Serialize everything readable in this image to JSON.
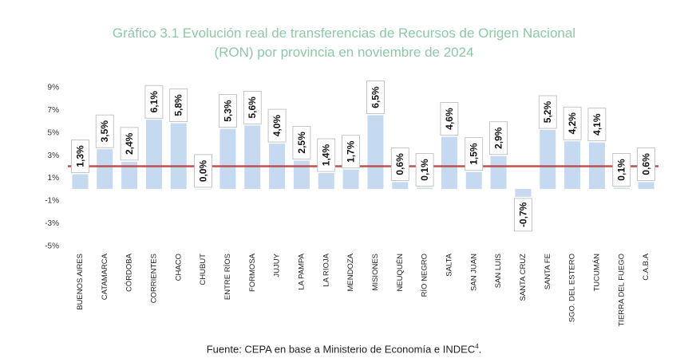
{
  "title_line1": "Gráfico 3.1 Evolución real de transferencias de Recursos de Origen Nacional",
  "title_line2": "(RON) por provincia en noviembre de 2024",
  "source": "Fuente: CEPA en base a Ministerio de Economía e INDEC",
  "source_sup": "4",
  "colors": {
    "bar": "#c5d9f1",
    "reference_line": "#c0504d",
    "title": "#8cc9a6"
  },
  "chart_data": {
    "type": "bar",
    "title": "Gráfico 3.1 Evolución real de transferencias de Recursos de Origen Nacional (RON) por provincia en noviembre de 2024",
    "categories": [
      "BUENOS AIRES",
      "CATAMARCA",
      "CÓRDOBA",
      "CORRIENTES",
      "CHACO",
      "CHUBUT",
      "ENTRE RÍOS",
      "FORMOSA",
      "JUJUY",
      "LA PAMPA",
      "LA RIOJA",
      "MENDOZA",
      "MISIONES",
      "NEUQUÉN",
      "RÍO NEGRO",
      "SALTA",
      "SAN JUAN",
      "SAN LUIS",
      "SANTA CRUZ",
      "SANTA FE",
      "SGO. DEL ESTERO",
      "TUCUMÁN",
      "TIERRA DEL FUEGO",
      "C.A.B.A"
    ],
    "values": [
      1.3,
      3.5,
      2.4,
      6.1,
      5.8,
      0.0,
      5.3,
      5.6,
      4.0,
      2.5,
      1.4,
      1.7,
      6.5,
      0.6,
      0.1,
      4.6,
      1.5,
      2.9,
      -0.7,
      5.2,
      4.2,
      4.1,
      0.1,
      0.6
    ],
    "labels": [
      "1,3%",
      "3,5%",
      "2,4%",
      "6,1%",
      "5,8%",
      "0,0%",
      "5,3%",
      "5,6%",
      "4,0%",
      "2,5%",
      "1,4%",
      "1,7%",
      "6,5%",
      "0,6%",
      "0,1%",
      "4,6%",
      "1,5%",
      "2,9%",
      "-0,7%",
      "5,2%",
      "4,2%",
      "4,1%",
      "0,1%",
      "0,6%"
    ],
    "reference_line": 2.0,
    "yticks": [
      "9%",
      "7%",
      "5%",
      "3%",
      "1%",
      "-1%",
      "-3%",
      "-5%"
    ],
    "ytick_values": [
      9,
      7,
      5,
      3,
      1,
      -1,
      -3,
      -5
    ],
    "ylim": [
      -5,
      9
    ],
    "grid": false,
    "legend": "none"
  }
}
